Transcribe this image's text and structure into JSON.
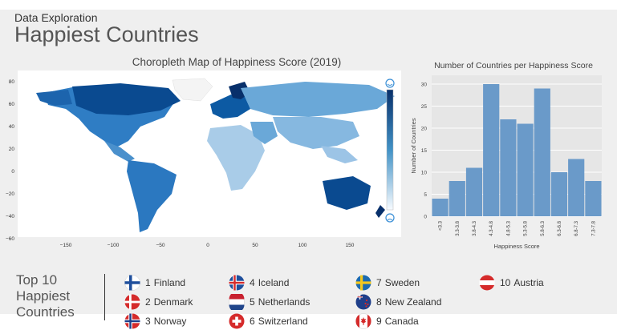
{
  "header": {
    "kicker": "Data Exploration",
    "title": "Happiest Countries"
  },
  "map": {
    "title": "Choropleth Map of Happiness Score (2019)",
    "y_ticks": [
      "80",
      "60",
      "40",
      "20",
      "0",
      "−20",
      "−40",
      "−60"
    ],
    "x_ticks": [
      "−150",
      "−100",
      "−50",
      "0",
      "50",
      "100",
      "150"
    ],
    "legend_top_icon": "happy-face-icon",
    "legend_bottom_icon": "sad-face-icon",
    "colors": {
      "high": "#08306b",
      "mid": "#2f7dc4",
      "low": "#c6dbef",
      "none": "#f4f4f4"
    }
  },
  "chart_data": {
    "type": "bar",
    "title": "Number of Countries per Happiness Score",
    "xlabel": "Happiness Score",
    "ylabel": "Number of Countries",
    "categories": [
      "<3.3",
      "3.3-3.8",
      "3.8-4.3",
      "4.3-4.8",
      "4.8-5.3",
      "5.3-5.8",
      "5.8-6.3",
      "6.3-6.8",
      "6.8-7.3",
      "7.3-7.8"
    ],
    "values": [
      4,
      8,
      11,
      30,
      22,
      21,
      29,
      10,
      13,
      8
    ],
    "ylim": [
      0,
      32
    ],
    "yticks": [
      0,
      5,
      10,
      15,
      20,
      25,
      30
    ],
    "grid": true,
    "bar_color": "#6a9ac9"
  },
  "top10": {
    "label": "Top 10 Happiest Countries",
    "countries": [
      {
        "rank": "1",
        "name": "Finland",
        "flag": "finland-flag-icon"
      },
      {
        "rank": "2",
        "name": "Denmark",
        "flag": "denmark-flag-icon"
      },
      {
        "rank": "3",
        "name": "Norway",
        "flag": "norway-flag-icon"
      },
      {
        "rank": "4",
        "name": "Iceland",
        "flag": "iceland-flag-icon"
      },
      {
        "rank": "5",
        "name": "Netherlands",
        "flag": "netherlands-flag-icon"
      },
      {
        "rank": "6",
        "name": "Switzerland",
        "flag": "switzerland-flag-icon"
      },
      {
        "rank": "7",
        "name": "Sweden",
        "flag": "sweden-flag-icon"
      },
      {
        "rank": "8",
        "name": "New Zealand",
        "flag": "new-zealand-flag-icon"
      },
      {
        "rank": "9",
        "name": "Canada",
        "flag": "canada-flag-icon"
      },
      {
        "rank": "10",
        "name": "Austria",
        "flag": "austria-flag-icon"
      }
    ]
  }
}
